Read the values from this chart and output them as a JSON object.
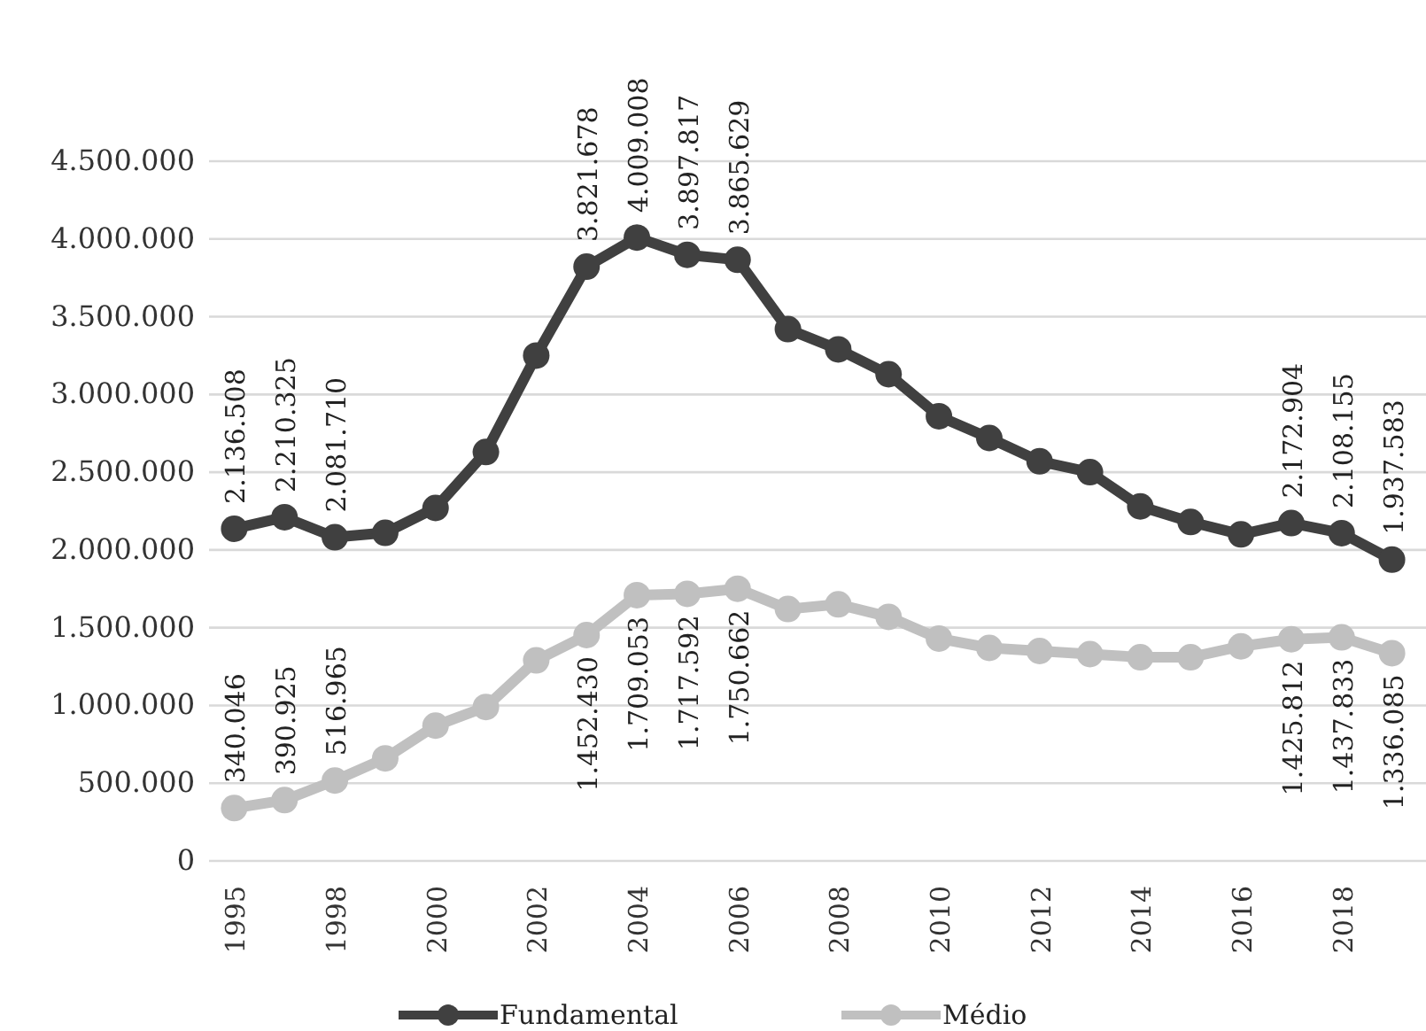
{
  "chart_data": {
    "type": "line",
    "categories": [
      "1995",
      null,
      "1998",
      null,
      "2000",
      null,
      "2002",
      null,
      "2004",
      null,
      "2006",
      null,
      "2008",
      null,
      "2010",
      null,
      "2012",
      null,
      "2014",
      null,
      "2016",
      null,
      "2018",
      null
    ],
    "series": [
      {
        "name": "Fundamental",
        "color": "#404040",
        "values": [
          2136508,
          2210325,
          2081710,
          2110000,
          2270000,
          2630000,
          3250000,
          3821678,
          4009008,
          3897817,
          3865629,
          3420000,
          3290000,
          3130000,
          2860000,
          2720000,
          2570000,
          2500000,
          2280000,
          2180000,
          2100000,
          2172904,
          2108155,
          1937583
        ],
        "value_labels": [
          "2.136.508",
          "2.210.325",
          "2.081.710",
          null,
          null,
          null,
          null,
          "3.821.678",
          "4.009.008",
          "3.897.817",
          "3.865.629",
          null,
          null,
          null,
          null,
          null,
          null,
          null,
          null,
          null,
          null,
          "2.172.904",
          "2.108.155",
          "1.937.583"
        ]
      },
      {
        "name": "Médio",
        "color": "#c0c0c0",
        "values": [
          340046,
          390925,
          516965,
          660000,
          870000,
          990000,
          1290000,
          1452430,
          1709053,
          1717592,
          1750662,
          1620000,
          1650000,
          1570000,
          1430000,
          1370000,
          1350000,
          1330000,
          1310000,
          1310000,
          1380000,
          1425812,
          1437833,
          1336085
        ],
        "value_labels": [
          "340.046",
          "390.925",
          "516.965",
          null,
          null,
          null,
          null,
          "1.452.430",
          "1.709.053",
          "1.717.592",
          "1.750.662",
          null,
          null,
          null,
          null,
          null,
          null,
          null,
          null,
          null,
          null,
          "1.425.812",
          "1.437.833",
          "1.336.085"
        ]
      }
    ],
    "ylim": [
      0,
      4500000
    ],
    "yticks": [
      {
        "value": 0,
        "label": "0"
      },
      {
        "value": 500000,
        "label": "500.000"
      },
      {
        "value": 1000000,
        "label": "1.000.000"
      },
      {
        "value": 1500000,
        "label": "1.500.000"
      },
      {
        "value": 2000000,
        "label": "2.000.000"
      },
      {
        "value": 2500000,
        "label": "2.500.000"
      },
      {
        "value": 3000000,
        "label": "3.000.000"
      },
      {
        "value": 3500000,
        "label": "3.500.000"
      },
      {
        "value": 4000000,
        "label": "4.000.000"
      },
      {
        "value": 4500000,
        "label": "4.500.000"
      }
    ],
    "grid": "y",
    "legend": "bottom",
    "marker": "circle",
    "line_style": "solid"
  }
}
